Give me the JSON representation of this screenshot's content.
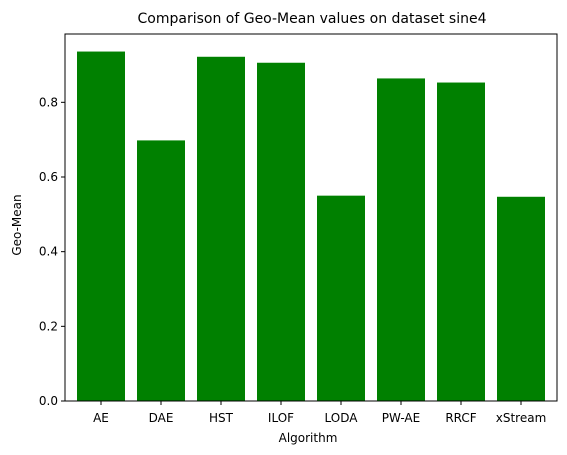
{
  "chart_data": {
    "type": "bar",
    "title": "Comparison of Geo-Mean values on dataset sine4",
    "xlabel": "Algorithm",
    "ylabel": "Geo-Mean",
    "categories": [
      "AE",
      "DAE",
      "HST",
      "ILOF",
      "LODA",
      "PW-AE",
      "RRCF",
      "xStream"
    ],
    "values": [
      0.936,
      0.698,
      0.922,
      0.906,
      0.55,
      0.864,
      0.853,
      0.547
    ],
    "ylim": [
      0,
      0.983
    ],
    "yticks": [
      0.0,
      0.2,
      0.4,
      0.6,
      0.8
    ],
    "ytick_labels": [
      "0.0",
      "0.2",
      "0.4",
      "0.6",
      "0.8"
    ],
    "bar_color": "#008000",
    "grid": false,
    "legend": "none"
  }
}
